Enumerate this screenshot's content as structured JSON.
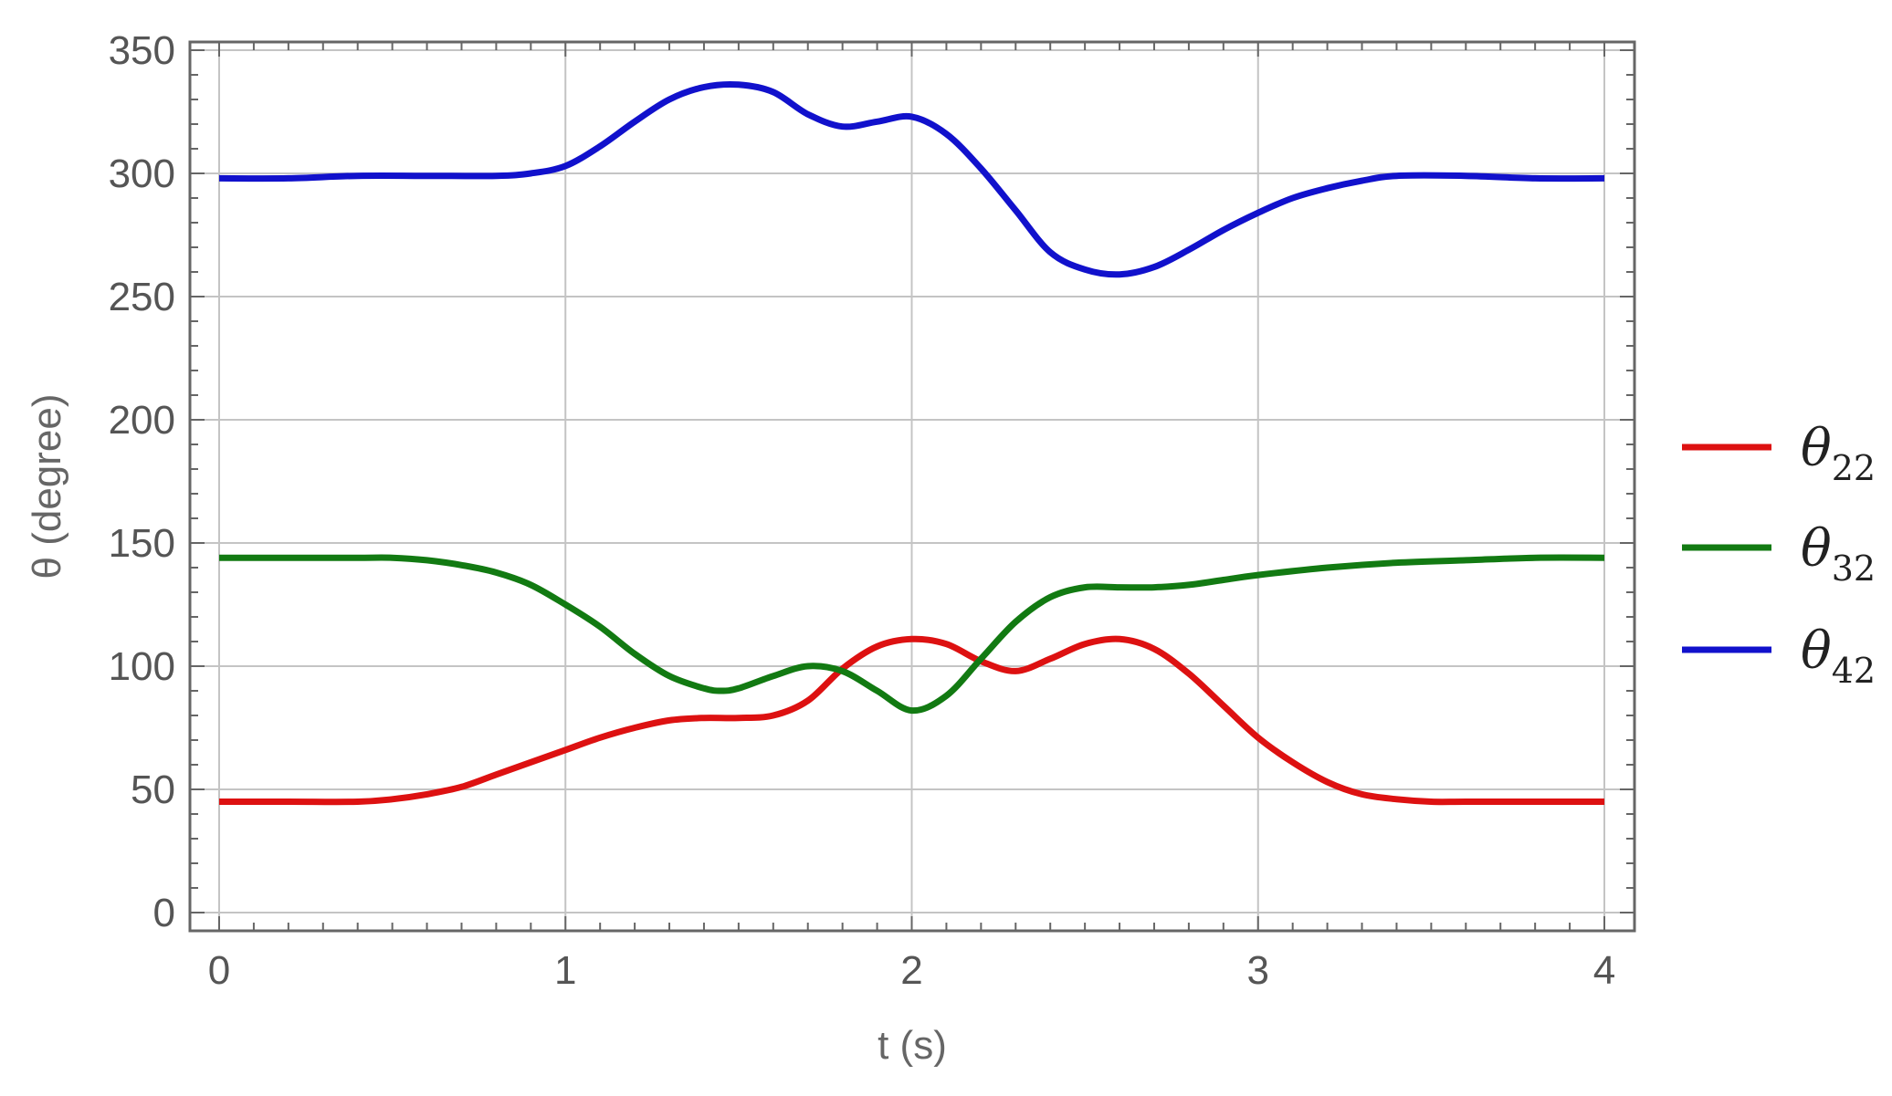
{
  "chart_data": {
    "type": "line",
    "title": "",
    "xlabel": "t (s)",
    "ylabel": "θ (degree)",
    "xlim": [
      0,
      4
    ],
    "ylim": [
      0,
      350
    ],
    "x_ticks": [
      0,
      1,
      2,
      3,
      4
    ],
    "y_ticks": [
      0,
      50,
      100,
      150,
      200,
      250,
      300,
      350
    ],
    "grid": true,
    "legend_position": "right",
    "series": [
      {
        "name": "θ22",
        "legend_symbol": "θ",
        "legend_subscript": "22",
        "color": "#dd1111",
        "x": [
          0,
          0.2,
          0.4,
          0.5,
          0.6,
          0.7,
          0.8,
          0.9,
          1.0,
          1.1,
          1.2,
          1.3,
          1.4,
          1.5,
          1.6,
          1.7,
          1.8,
          1.9,
          2.0,
          2.1,
          2.2,
          2.3,
          2.4,
          2.5,
          2.6,
          2.7,
          2.8,
          2.9,
          3.0,
          3.1,
          3.2,
          3.3,
          3.4,
          3.5,
          3.6,
          3.8,
          4.0
        ],
        "y": [
          45,
          45,
          45,
          46,
          48,
          51,
          56,
          61,
          66,
          71,
          75,
          78,
          79,
          79,
          80,
          86,
          99,
          108,
          111,
          109,
          102,
          98,
          103,
          109,
          111,
          107,
          97,
          84,
          71,
          61,
          53,
          48,
          46,
          45,
          45,
          45,
          45
        ]
      },
      {
        "name": "θ32",
        "legend_symbol": "θ",
        "legend_subscript": "32",
        "color": "#127a12",
        "x": [
          0,
          0.2,
          0.4,
          0.5,
          0.6,
          0.7,
          0.8,
          0.9,
          1.0,
          1.1,
          1.2,
          1.3,
          1.4,
          1.45,
          1.5,
          1.6,
          1.7,
          1.8,
          1.9,
          2.0,
          2.1,
          2.2,
          2.3,
          2.4,
          2.5,
          2.6,
          2.7,
          2.8,
          2.9,
          3.0,
          3.2,
          3.4,
          3.6,
          3.8,
          4.0
        ],
        "y": [
          144,
          144,
          144,
          144,
          143,
          141,
          138,
          133,
          125,
          116,
          105,
          96,
          91,
          90,
          91,
          96,
          100,
          98,
          90,
          82,
          88,
          103,
          118,
          128,
          132,
          132,
          132,
          133,
          135,
          137,
          140,
          142,
          143,
          144,
          144
        ]
      },
      {
        "name": "θ42",
        "legend_symbol": "θ",
        "legend_subscript": "42",
        "color": "#1111cc",
        "x": [
          0,
          0.2,
          0.4,
          0.6,
          0.8,
          0.9,
          1.0,
          1.1,
          1.2,
          1.3,
          1.4,
          1.5,
          1.6,
          1.7,
          1.8,
          1.9,
          2.0,
          2.1,
          2.2,
          2.3,
          2.4,
          2.5,
          2.6,
          2.7,
          2.8,
          2.9,
          3.0,
          3.1,
          3.2,
          3.3,
          3.4,
          3.6,
          3.8,
          4.0
        ],
        "y": [
          298,
          298,
          299,
          299,
          299,
          300,
          303,
          311,
          321,
          330,
          335,
          336,
          333,
          324,
          319,
          321,
          323,
          316,
          302,
          285,
          268,
          261,
          259,
          262,
          269,
          277,
          284,
          290,
          294,
          297,
          299,
          299,
          298,
          298
        ]
      }
    ]
  }
}
